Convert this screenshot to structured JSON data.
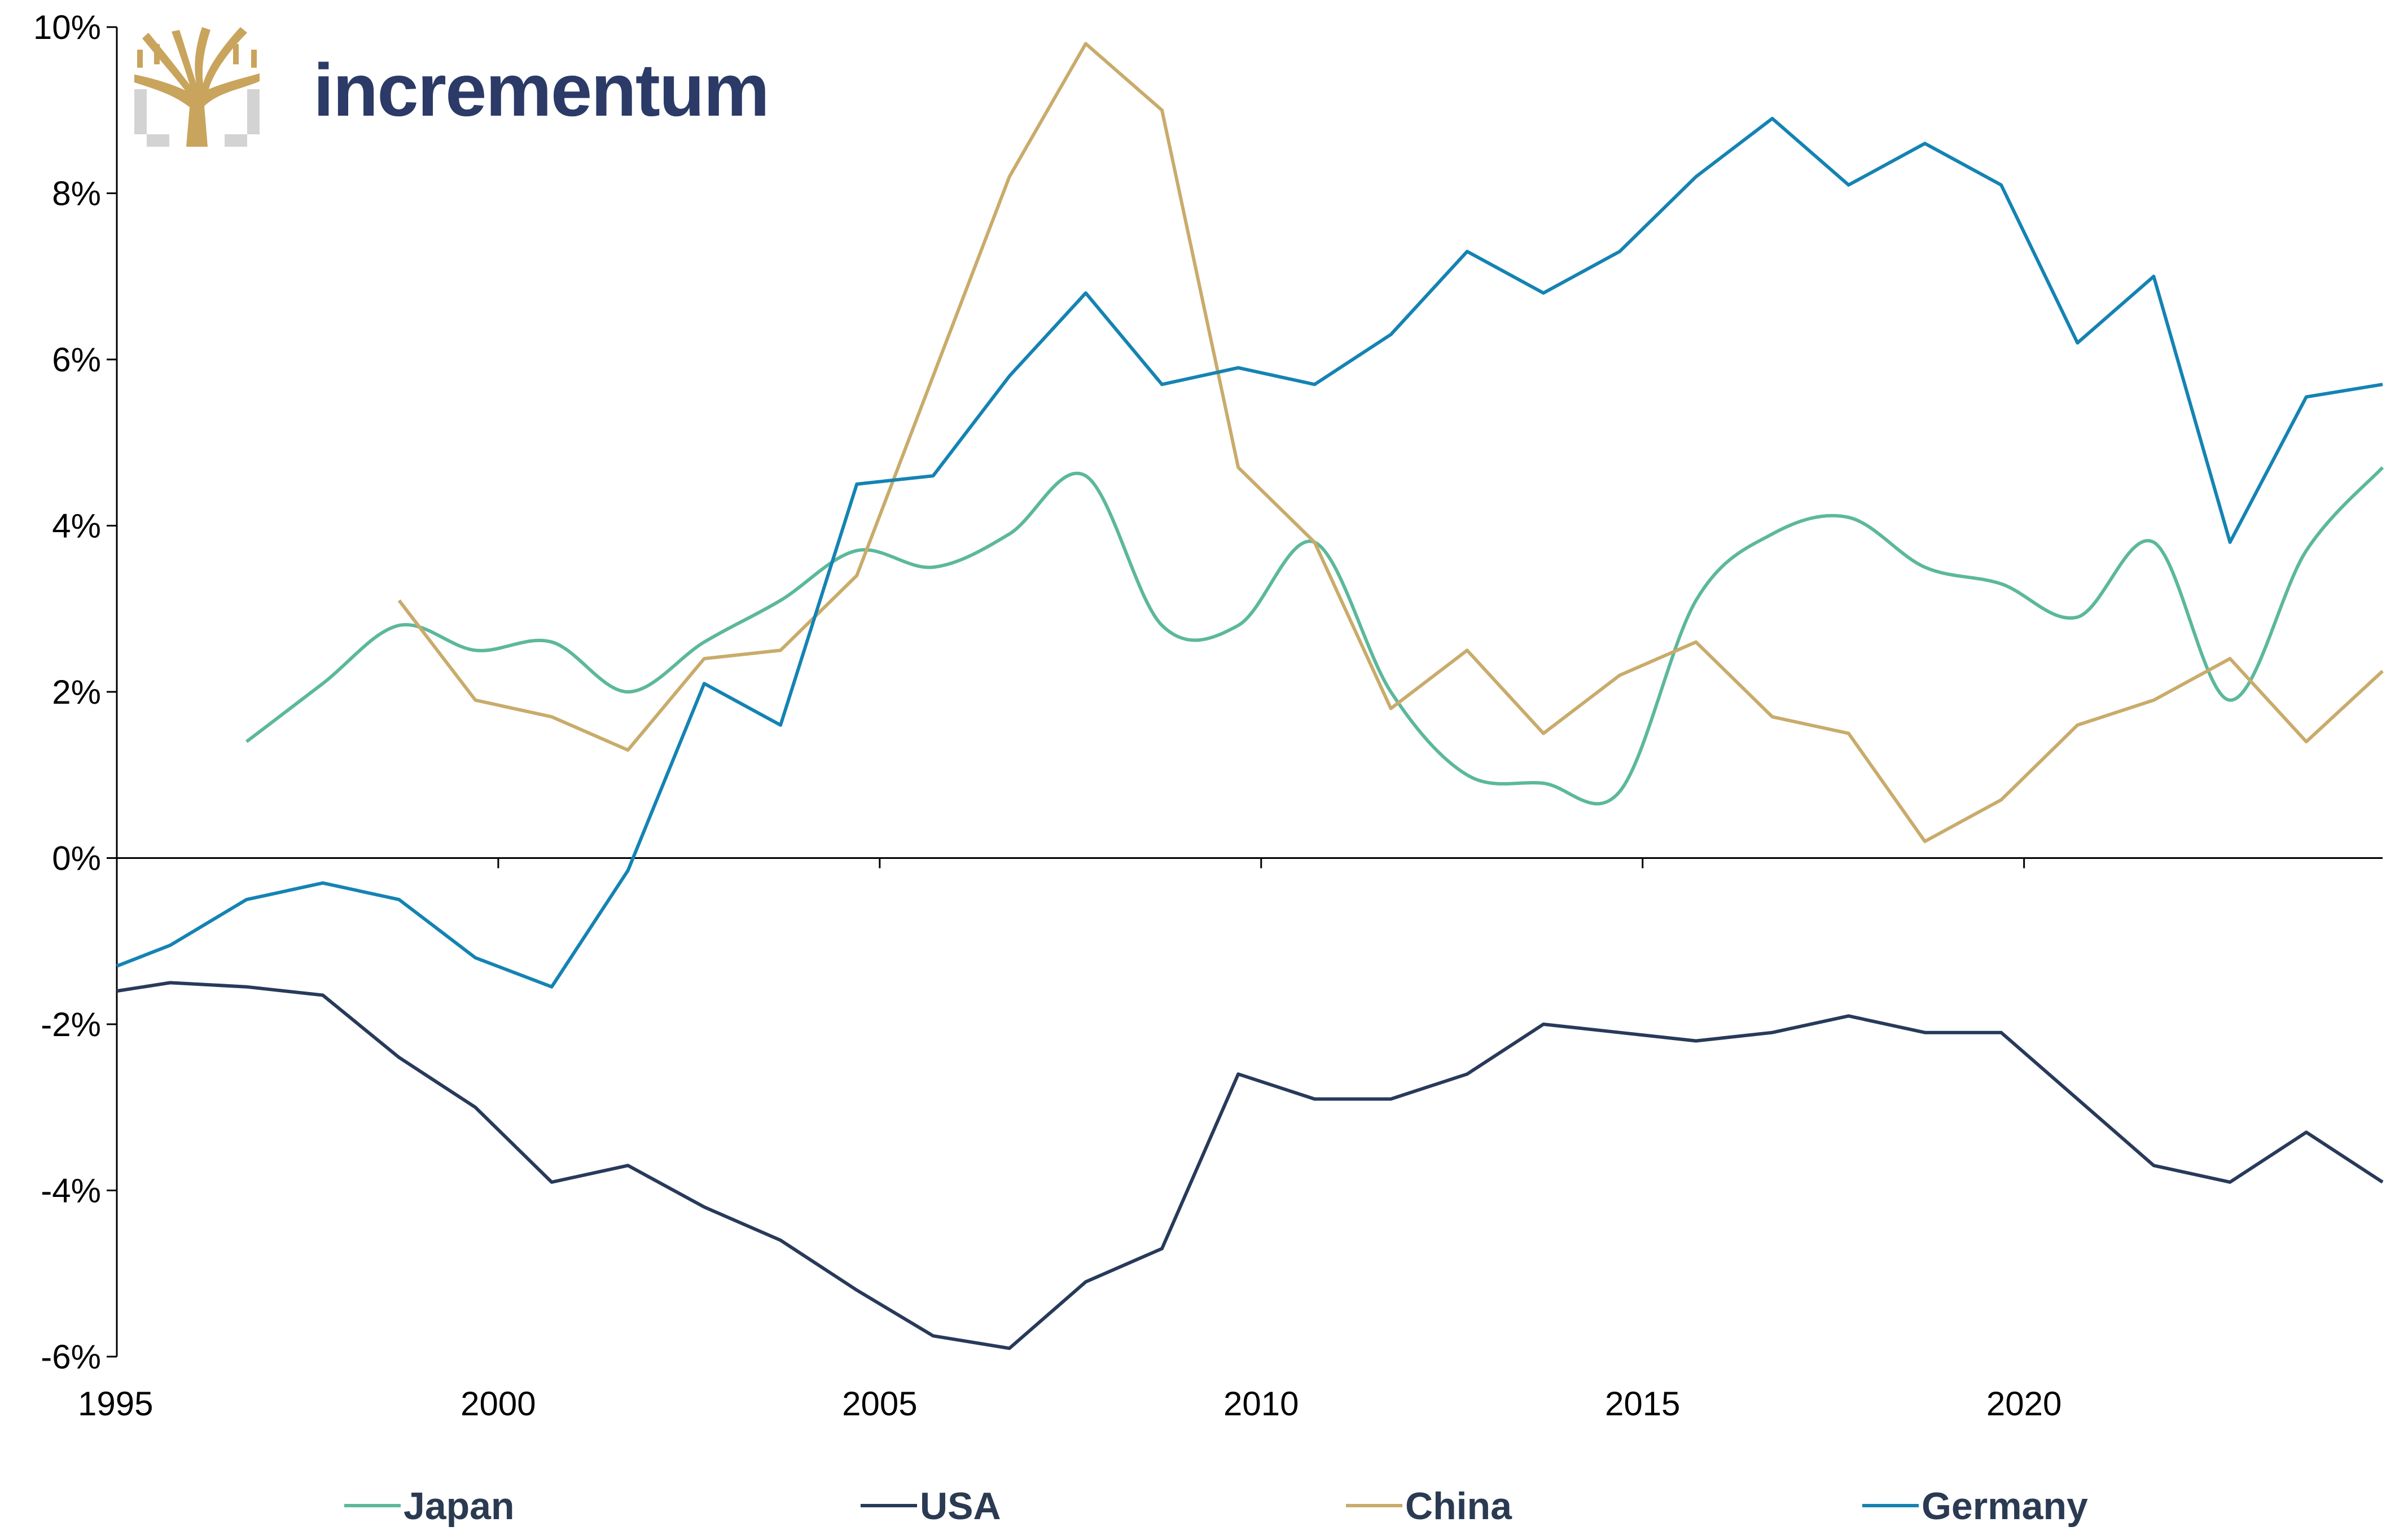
{
  "brand": {
    "name": "incrementum",
    "icon": "tree-logo-icon"
  },
  "colors": {
    "Japan": "#5cb89b",
    "USA": "#283a5a",
    "China": "#c9ab6b",
    "Germany": "#1483b3",
    "axis": "#000000",
    "logo_gold": "#c9a45c",
    "logo_gray": "#d3d3d3"
  },
  "chart_data": {
    "type": "line",
    "title": "",
    "xlabel": "",
    "ylabel": "",
    "xlim": [
      1995,
      2024.7
    ],
    "ylim": [
      -6,
      10
    ],
    "x_ticks": [
      1995,
      2000,
      2005,
      2010,
      2015,
      2020
    ],
    "x_tick_labels": [
      "1995",
      "2000",
      "2005",
      "2010",
      "2015",
      "2020"
    ],
    "y_ticks": [
      -6,
      -4,
      -2,
      0,
      2,
      4,
      6,
      8,
      10
    ],
    "y_tick_labels": [
      "-6%",
      "-4%",
      "-2%",
      "0%",
      "2%",
      "4%",
      "6%",
      "8%",
      "10%"
    ],
    "grid": false,
    "legend_position": "bottom",
    "series": [
      {
        "name": "Japan",
        "color": "#5cb89b",
        "smooth": true,
        "x": [
          1996.7,
          1997.7,
          1998.7,
          1999.7,
          2000.7,
          2001.7,
          2002.7,
          2003.7,
          2004.7,
          2005.7,
          2006.7,
          2007.7,
          2008.7,
          2009.7,
          2010.7,
          2011.7,
          2012.7,
          2013.7,
          2014.7,
          2015.7,
          2016.7,
          2017.7,
          2018.7,
          2019.7,
          2020.7,
          2021.7,
          2022.7,
          2023.7,
          2024.7
        ],
        "y": [
          1.4,
          2.1,
          2.8,
          2.5,
          2.6,
          2.0,
          2.6,
          3.1,
          3.7,
          3.5,
          3.9,
          4.6,
          2.8,
          2.8,
          3.8,
          2.0,
          1.0,
          0.9,
          0.8,
          3.1,
          3.9,
          4.1,
          3.5,
          3.3,
          2.9,
          3.8,
          1.9,
          3.7,
          4.7
        ]
      },
      {
        "name": "USA",
        "color": "#283a5a",
        "smooth": false,
        "x": [
          1995.0,
          1995.7,
          1996.7,
          1997.7,
          1998.7,
          1999.7,
          2000.7,
          2001.7,
          2002.7,
          2003.7,
          2004.7,
          2005.7,
          2006.7,
          2007.7,
          2008.7,
          2009.7,
          2010.7,
          2011.7,
          2012.7,
          2013.7,
          2014.7,
          2015.7,
          2016.7,
          2017.7,
          2018.7,
          2019.7,
          2020.7,
          2021.7,
          2022.7,
          2023.7,
          2024.7
        ],
        "y": [
          -1.6,
          -1.5,
          -1.55,
          -1.65,
          -2.4,
          -3.0,
          -3.9,
          -3.7,
          -4.2,
          -4.6,
          -5.2,
          -5.75,
          -5.9,
          -5.1,
          -4.7,
          -2.6,
          -2.9,
          -2.9,
          -2.6,
          -2.0,
          -2.1,
          -2.2,
          -2.1,
          -1.9,
          -2.1,
          -2.1,
          -2.9,
          -3.7,
          -3.9,
          -3.3,
          -3.9
        ]
      },
      {
        "name": "China",
        "color": "#c9ab6b",
        "smooth": false,
        "x": [
          1998.7,
          1999.7,
          2000.7,
          2001.7,
          2002.7,
          2003.7,
          2004.7,
          2005.7,
          2006.7,
          2007.7,
          2008.7,
          2009.7,
          2010.7,
          2011.7,
          2012.7,
          2013.7,
          2014.7,
          2015.7,
          2016.7,
          2017.7,
          2018.7,
          2019.7,
          2020.7,
          2021.7,
          2022.7,
          2023.7,
          2024.7
        ],
        "y": [
          3.1,
          1.9,
          1.7,
          1.3,
          2.4,
          2.5,
          3.4,
          5.8,
          8.2,
          9.8,
          9.0,
          4.7,
          3.8,
          1.8,
          2.5,
          1.5,
          2.2,
          2.6,
          1.7,
          1.5,
          0.2,
          0.7,
          1.6,
          1.9,
          2.4,
          1.4,
          2.25
        ]
      },
      {
        "name": "Germany",
        "color": "#1483b3",
        "smooth": false,
        "x": [
          1995.0,
          1995.7,
          1996.7,
          1997.7,
          1998.7,
          1999.7,
          2000.7,
          2001.7,
          2002.7,
          2003.7,
          2004.7,
          2005.7,
          2006.7,
          2007.7,
          2008.7,
          2009.7,
          2010.7,
          2011.7,
          2012.7,
          2013.7,
          2014.7,
          2015.7,
          2016.7,
          2017.7,
          2018.7,
          2019.7,
          2020.7,
          2021.7,
          2022.7,
          2023.7,
          2024.7
        ],
        "y": [
          -1.3,
          -1.05,
          -0.5,
          -0.3,
          -0.5,
          -1.2,
          -1.55,
          -0.15,
          2.1,
          1.6,
          4.5,
          4.6,
          5.8,
          6.8,
          5.7,
          5.9,
          5.7,
          6.3,
          7.3,
          6.8,
          7.3,
          8.2,
          8.9,
          8.1,
          8.6,
          8.1,
          6.2,
          7.0,
          3.8,
          5.55,
          5.7
        ]
      }
    ]
  }
}
